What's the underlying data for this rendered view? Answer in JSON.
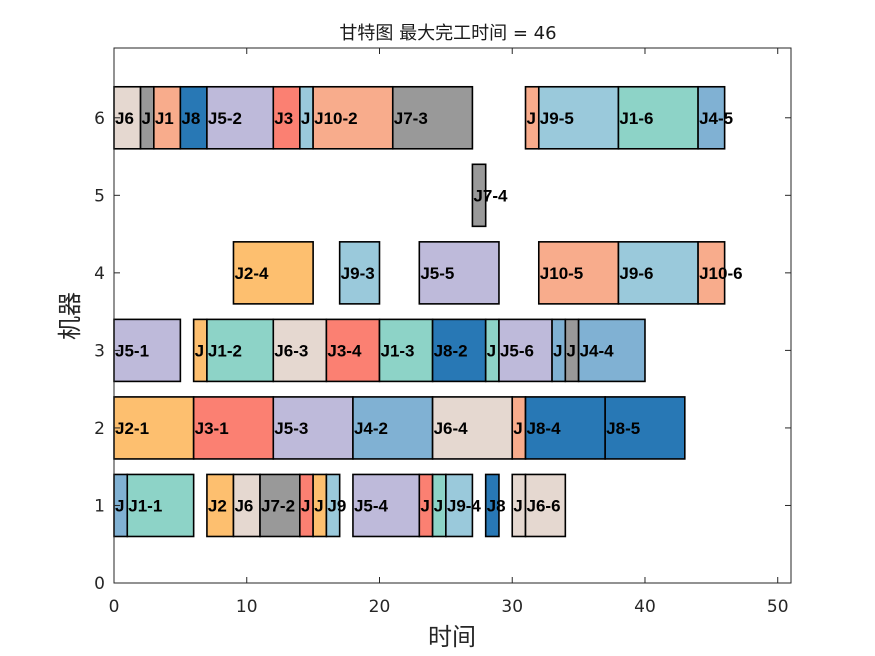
{
  "chart_data": {
    "type": "gantt",
    "title": "甘特图 最大完工时间 = 46",
    "xlabel": "时间",
    "ylabel": "机器",
    "xlim": [
      0,
      51
    ],
    "ylim": [
      0,
      6.9
    ],
    "xticks": [
      0,
      10,
      20,
      30,
      40,
      50
    ],
    "yticks": [
      0,
      1,
      2,
      3,
      4,
      5,
      6
    ],
    "grid": false,
    "job_colors": {
      "J1": "#8dd3c7",
      "J2": "#fdbf6f",
      "J3": "#fb8072",
      "J4": "#80b1d3",
      "J5": "#bebada",
      "J6": "#e5d8d0",
      "J7": "#999999",
      "J8": "#2878b5",
      "J9": "#9ac9db",
      "J10": "#f8ac8c"
    },
    "tasks": [
      {
        "machine": 6,
        "job": "J6",
        "label": "J6",
        "start": 0,
        "end": 2
      },
      {
        "machine": 6,
        "job": "J7",
        "label": "J",
        "start": 2,
        "end": 3
      },
      {
        "machine": 6,
        "job": "J10",
        "label": "J1",
        "start": 3,
        "end": 5
      },
      {
        "machine": 6,
        "job": "J8",
        "label": "J8",
        "start": 5,
        "end": 7
      },
      {
        "machine": 6,
        "job": "J5",
        "label": "J5-2",
        "start": 7,
        "end": 12
      },
      {
        "machine": 6,
        "job": "J3",
        "label": "J3",
        "start": 12,
        "end": 14
      },
      {
        "machine": 6,
        "job": "J9",
        "label": "J",
        "start": 14,
        "end": 15
      },
      {
        "machine": 6,
        "job": "J10",
        "label": "J10-2",
        "start": 15,
        "end": 21
      },
      {
        "machine": 6,
        "job": "J7",
        "label": "J7-3",
        "start": 21,
        "end": 27
      },
      {
        "machine": 6,
        "job": "J10",
        "label": "J",
        "start": 31,
        "end": 32
      },
      {
        "machine": 6,
        "job": "J9",
        "label": "J9-5",
        "start": 32,
        "end": 38
      },
      {
        "machine": 6,
        "job": "J1",
        "label": "J1-6",
        "start": 38,
        "end": 44
      },
      {
        "machine": 6,
        "job": "J4",
        "label": "J4-5",
        "start": 44,
        "end": 46
      },
      {
        "machine": 5,
        "job": "J7",
        "label": "J7-4",
        "start": 27,
        "end": 28
      },
      {
        "machine": 4,
        "job": "J2",
        "label": "J2-4",
        "start": 9,
        "end": 15
      },
      {
        "machine": 4,
        "job": "J9",
        "label": "J9-3",
        "start": 17,
        "end": 20
      },
      {
        "machine": 4,
        "job": "J5",
        "label": "J5-5",
        "start": 23,
        "end": 29
      },
      {
        "machine": 4,
        "job": "J10",
        "label": "J10-5",
        "start": 32,
        "end": 38
      },
      {
        "machine": 4,
        "job": "J9",
        "label": "J9-6",
        "start": 38,
        "end": 44
      },
      {
        "machine": 4,
        "job": "J10",
        "label": "J10-6",
        "start": 44,
        "end": 46
      },
      {
        "machine": 3,
        "job": "J5",
        "label": "J5-1",
        "start": 0,
        "end": 5
      },
      {
        "machine": 3,
        "job": "J2",
        "label": "J",
        "start": 6,
        "end": 7
      },
      {
        "machine": 3,
        "job": "J1",
        "label": "J1-2",
        "start": 7,
        "end": 12
      },
      {
        "machine": 3,
        "job": "J6",
        "label": "J6-3",
        "start": 12,
        "end": 16
      },
      {
        "machine": 3,
        "job": "J3",
        "label": "J3-4",
        "start": 16,
        "end": 20
      },
      {
        "machine": 3,
        "job": "J1",
        "label": "J1-3",
        "start": 20,
        "end": 24
      },
      {
        "machine": 3,
        "job": "J8",
        "label": "J8-2",
        "start": 24,
        "end": 28
      },
      {
        "machine": 3,
        "job": "J1",
        "label": "J",
        "start": 28,
        "end": 29
      },
      {
        "machine": 3,
        "job": "J5",
        "label": "J5-6",
        "start": 29,
        "end": 33
      },
      {
        "machine": 3,
        "job": "J4",
        "label": "J",
        "start": 33,
        "end": 34
      },
      {
        "machine": 3,
        "job": "J7",
        "label": "J",
        "start": 34,
        "end": 35
      },
      {
        "machine": 3,
        "job": "J4",
        "label": "J4-4",
        "start": 35,
        "end": 40
      },
      {
        "machine": 2,
        "job": "J2",
        "label": "J2-1",
        "start": 0,
        "end": 6
      },
      {
        "machine": 2,
        "job": "J3",
        "label": "J3-1",
        "start": 6,
        "end": 12
      },
      {
        "machine": 2,
        "job": "J5",
        "label": "J5-3",
        "start": 12,
        "end": 18
      },
      {
        "machine": 2,
        "job": "J4",
        "label": "J4-2",
        "start": 18,
        "end": 24
      },
      {
        "machine": 2,
        "job": "J6",
        "label": "J6-4",
        "start": 24,
        "end": 30
      },
      {
        "machine": 2,
        "job": "J10",
        "label": "J",
        "start": 30,
        "end": 31
      },
      {
        "machine": 2,
        "job": "J8",
        "label": "J8-4",
        "start": 31,
        "end": 37
      },
      {
        "machine": 2,
        "job": "J8",
        "label": "J8-5",
        "start": 37,
        "end": 43
      },
      {
        "machine": 1,
        "job": "J4",
        "label": "J",
        "start": 0,
        "end": 1
      },
      {
        "machine": 1,
        "job": "J1",
        "label": "J1-1",
        "start": 1,
        "end": 6
      },
      {
        "machine": 1,
        "job": "J2",
        "label": "J2",
        "start": 7,
        "end": 9
      },
      {
        "machine": 1,
        "job": "J6",
        "label": "J6",
        "start": 9,
        "end": 11
      },
      {
        "machine": 1,
        "job": "J7",
        "label": "J7-2",
        "start": 11,
        "end": 14
      },
      {
        "machine": 1,
        "job": "J3",
        "label": "J",
        "start": 14,
        "end": 15
      },
      {
        "machine": 1,
        "job": "J2",
        "label": "J",
        "start": 15,
        "end": 16
      },
      {
        "machine": 1,
        "job": "J9",
        "label": "J9",
        "start": 16,
        "end": 17
      },
      {
        "machine": 1,
        "job": "J5",
        "label": "J5-4",
        "start": 18,
        "end": 23
      },
      {
        "machine": 1,
        "job": "J3",
        "label": "J",
        "start": 23,
        "end": 24
      },
      {
        "machine": 1,
        "job": "J1",
        "label": "J",
        "start": 24,
        "end": 25
      },
      {
        "machine": 1,
        "job": "J9",
        "label": "J9-4",
        "start": 25,
        "end": 27
      },
      {
        "machine": 1,
        "job": "J8",
        "label": "J8",
        "start": 28,
        "end": 29
      },
      {
        "machine": 1,
        "job": "J6",
        "label": "J",
        "start": 30,
        "end": 31
      },
      {
        "machine": 1,
        "job": "J6",
        "label": "J6-6",
        "start": 31,
        "end": 34
      }
    ]
  }
}
